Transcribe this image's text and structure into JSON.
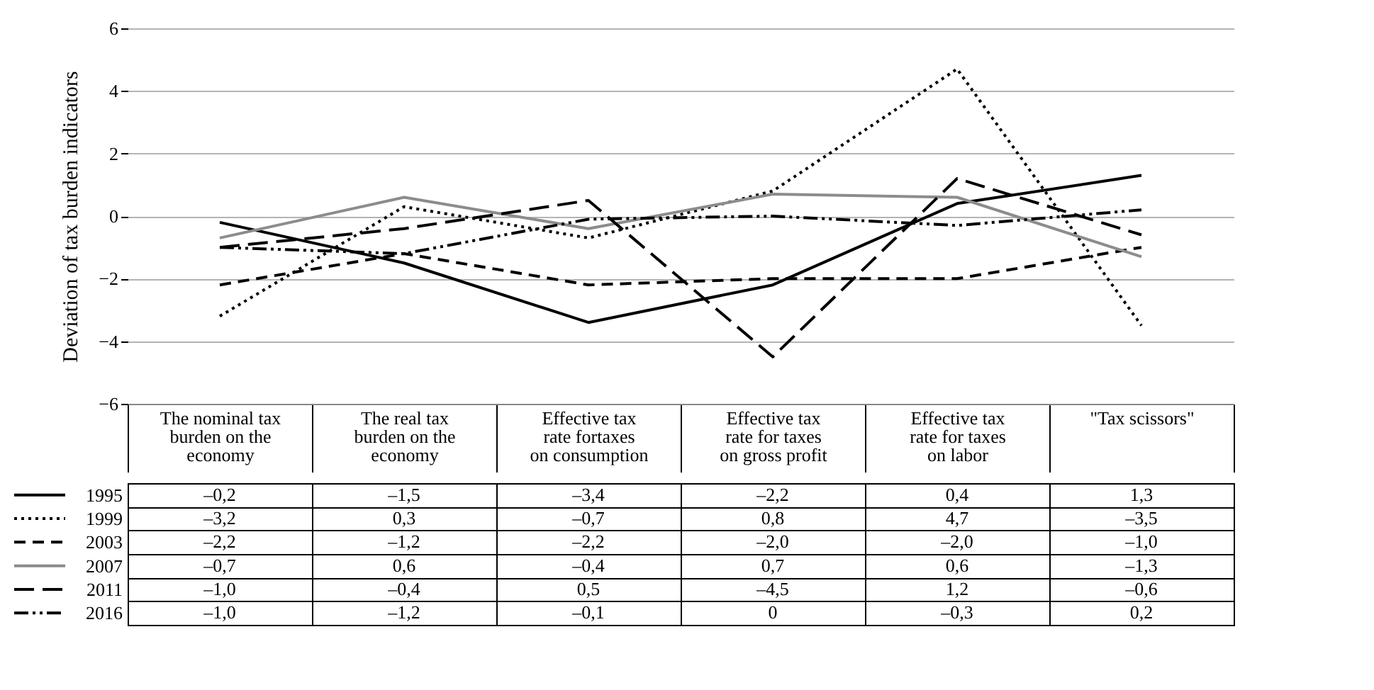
{
  "chart_data": {
    "type": "line",
    "ylabel": "Deviation of tax burden indicators",
    "categories": [
      "The nominal tax burden on the economy",
      "The real tax burden on the economy",
      "Effective tax rate fortaxes on consumption",
      "Effective tax rate for taxes on gross profit",
      "Effective tax rate for taxes on labor",
      "\"Tax scissors\""
    ],
    "series": [
      {
        "name": "1995",
        "color": "#000000",
        "line_style": "solid",
        "values": [
          -0.2,
          -1.5,
          -3.4,
          -2.2,
          0.4,
          1.3
        ],
        "value_labels": [
          "–0,2",
          "–1,5",
          "–3,4",
          "–2,2",
          "0,4",
          "1,3"
        ]
      },
      {
        "name": "1999",
        "color": "#000000",
        "line_style": "dotted",
        "values": [
          -3.2,
          0.3,
          -0.7,
          0.8,
          4.7,
          -3.5
        ],
        "value_labels": [
          "–3,2",
          "0,3",
          "–0,7",
          "0,8",
          "4,7",
          "–3,5"
        ]
      },
      {
        "name": "2003",
        "color": "#000000",
        "line_style": "dashed",
        "values": [
          -2.2,
          -1.2,
          -2.2,
          -2.0,
          -2.0,
          -1.0
        ],
        "value_labels": [
          "–2,2",
          "–1,2",
          "–2,2",
          "–2,0",
          "–2,0",
          "–1,0"
        ]
      },
      {
        "name": "2007",
        "color": "#8c8c8c",
        "line_style": "solid",
        "values": [
          -0.7,
          0.6,
          -0.4,
          0.7,
          0.6,
          -1.3
        ],
        "value_labels": [
          "–0,7",
          "0,6",
          "–0,4",
          "0,7",
          "0,6",
          "–1,3"
        ]
      },
      {
        "name": "2011",
        "color": "#000000",
        "line_style": "longdash",
        "values": [
          -1.0,
          -0.4,
          0.5,
          -4.5,
          1.2,
          -0.6
        ],
        "value_labels": [
          "–1,0",
          "–0,4",
          "0,5",
          "–4,5",
          "1,2",
          "–0,6"
        ]
      },
      {
        "name": "2016",
        "color": "#000000",
        "line_style": "dashdot",
        "values": [
          -1.0,
          -1.2,
          -0.1,
          0,
          -0.3,
          0.2
        ],
        "value_labels": [
          "–1,0",
          "–1,2",
          "–0,1",
          "0",
          "–0,3",
          "0,2"
        ]
      }
    ],
    "ylim": [
      -6,
      6
    ],
    "yticks": [
      {
        "value": -6,
        "label": "−6"
      },
      {
        "value": -4,
        "label": "−4"
      },
      {
        "value": -2,
        "label": "−2"
      },
      0,
      2,
      4,
      6
    ],
    "grid": "y",
    "legend": "bottom"
  }
}
